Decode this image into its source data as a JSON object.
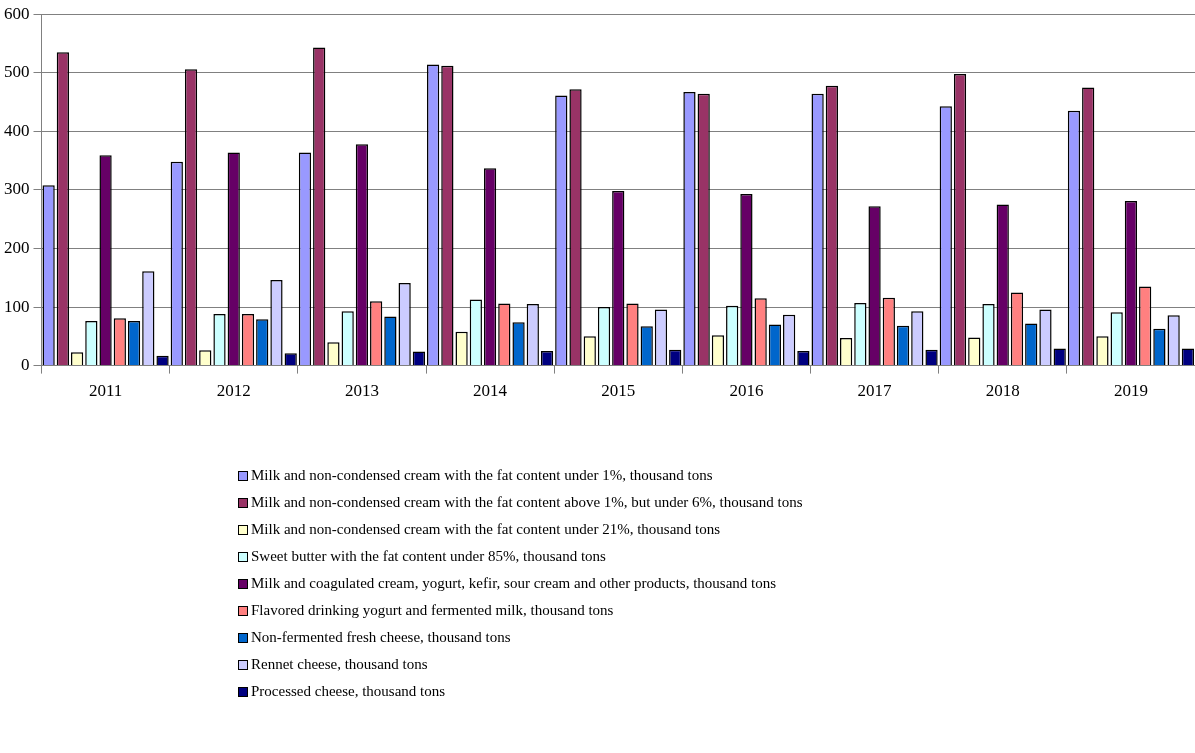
{
  "chart_data": {
    "type": "bar",
    "categories": [
      "2011",
      "2012",
      "2013",
      "2014",
      "2015",
      "2016",
      "2017",
      "2018",
      "2019"
    ],
    "series": [
      {
        "name": "Milk and non-condensed cream with the fat content under 1%, thousand tons",
        "color": "#9999ff",
        "values": [
          308,
          348,
          364,
          514,
          461,
          467,
          464,
          443,
          435
        ]
      },
      {
        "name": "Milk and non-condensed cream with the fat content above 1%, but under 6%, thousand tons",
        "color": "#993366",
        "values": [
          535,
          506,
          543,
          512,
          472,
          464,
          478,
          498,
          475
        ]
      },
      {
        "name": "Milk and non-condensed cream with the fat content under 21%, thousand tons",
        "color": "#ffffcc",
        "values": [
          23,
          26,
          40,
          58,
          50,
          52,
          47,
          48,
          50
        ]
      },
      {
        "name": "Sweet butter with the fat content under 85%, thousand tons",
        "color": "#ccffff",
        "values": [
          76,
          88,
          93,
          113,
          100,
          102,
          107,
          105,
          91
        ]
      },
      {
        "name": "Milk and coagulated cream, yogurt, kefir, sour cream and other products, thousand tons",
        "color": "#660066",
        "values": [
          359,
          364,
          378,
          337,
          298,
          293,
          272,
          275,
          281
        ]
      },
      {
        "name": "Flavored drinking yogurt and fermented milk, thousand tons",
        "color": "#ff8080",
        "values": [
          81,
          88,
          110,
          106,
          106,
          115,
          116,
          125,
          135
        ]
      },
      {
        "name": "Non-fermented fresh cheese, thousand tons",
        "color": "#0066cc",
        "values": [
          76,
          79,
          84,
          74,
          67,
          70,
          68,
          72,
          63
        ]
      },
      {
        "name": "Rennet cheese, thousand tons",
        "color": "#ccccff",
        "values": [
          161,
          146,
          141,
          105,
          96,
          87,
          93,
          96,
          86
        ]
      },
      {
        "name": "Processed cheese, thousand tons",
        "color": "#000080",
        "values": [
          17,
          21,
          24,
          25,
          27,
          25,
          27,
          29,
          29
        ]
      }
    ],
    "ylim": [
      0,
      600
    ],
    "yticks": [
      0,
      100,
      200,
      300,
      400,
      500,
      600
    ],
    "grid": "y",
    "legend": "bottom"
  }
}
